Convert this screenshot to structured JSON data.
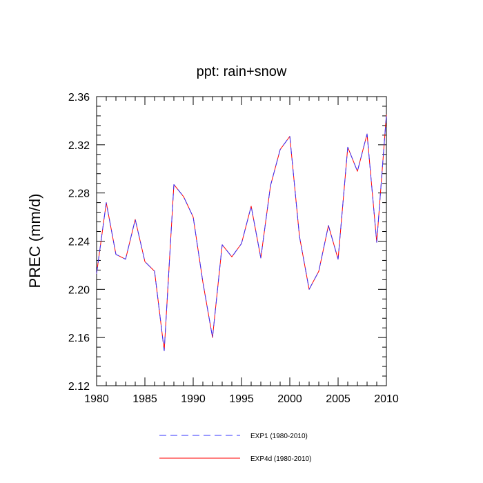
{
  "chart_data": {
    "type": "line",
    "title": "ppt: rain+snow",
    "xlabel": "",
    "ylabel": "PREC  (mm/d)",
    "xlim": [
      1980,
      2010
    ],
    "ylim": [
      2.12,
      2.36
    ],
    "xticks": [
      1980,
      1985,
      1990,
      1995,
      2000,
      2005,
      2010
    ],
    "yticks": [
      2.12,
      2.16,
      2.2,
      2.24,
      2.28,
      2.32,
      2.36
    ],
    "ytick_labels": [
      "2.12",
      "2.16",
      "2.20",
      "2.24",
      "2.28",
      "2.32",
      "2.36"
    ],
    "x": [
      1980,
      1981,
      1982,
      1983,
      1984,
      1985,
      1986,
      1987,
      1988,
      1989,
      1990,
      1991,
      1992,
      1993,
      1994,
      1995,
      1996,
      1997,
      1998,
      1999,
      2000,
      2001,
      2002,
      2003,
      2004,
      2005,
      2006,
      2007,
      2008,
      2009,
      2010
    ],
    "series": [
      {
        "name": "EXP1 (1980-2010)",
        "color": "#3333ff",
        "style": "dashed",
        "values": [
          2.213,
          2.272,
          2.229,
          2.225,
          2.258,
          2.223,
          2.215,
          2.149,
          2.287,
          2.277,
          2.26,
          2.206,
          2.16,
          2.237,
          2.227,
          2.238,
          2.269,
          2.226,
          2.286,
          2.316,
          2.327,
          2.244,
          2.2,
          2.215,
          2.253,
          2.225,
          2.318,
          2.298,
          2.329,
          2.239,
          2.345
        ]
      },
      {
        "name": "EXP4d (1980-2010)",
        "color": "#ff0000",
        "style": "solid",
        "values": [
          2.213,
          2.272,
          2.229,
          2.225,
          2.258,
          2.223,
          2.215,
          2.149,
          2.287,
          2.277,
          2.26,
          2.206,
          2.16,
          2.237,
          2.227,
          2.238,
          2.269,
          2.226,
          2.286,
          2.316,
          2.327,
          2.244,
          2.2,
          2.215,
          2.253,
          2.225,
          2.318,
          2.298,
          2.329,
          2.239,
          2.345
        ]
      }
    ],
    "legend_position": "bottom-center",
    "grid": false
  }
}
